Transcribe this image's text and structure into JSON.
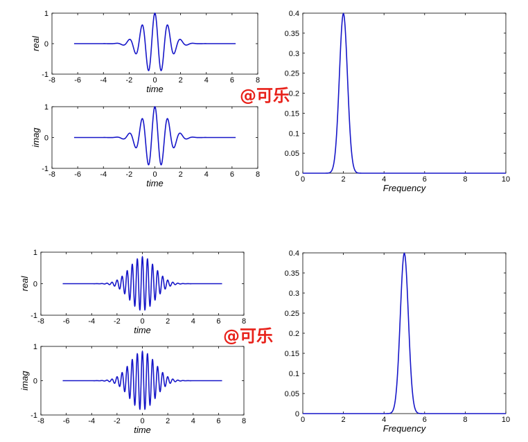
{
  "watermark": "@可乐",
  "colors": {
    "line": "#1515c8",
    "axis": "#000000",
    "background": "#ffffff"
  },
  "chart_data": [
    {
      "type": "line",
      "id": "wavelet-a-real",
      "title": "",
      "xlabel": "time",
      "ylabel": "real",
      "xlim": [
        -8,
        8
      ],
      "ylim": [
        -1,
        1
      ],
      "xticks": [
        -8,
        -6,
        -4,
        -2,
        0,
        2,
        4,
        6,
        8
      ],
      "yticks": [
        -1,
        0,
        1
      ],
      "grid": false,
      "signal": {
        "component": "real",
        "center_frequency": 2,
        "envelope_sigma": 1,
        "t_range": [
          -6.28,
          6.28
        ],
        "amplitude": 1
      },
      "series": [
        {
          "description_points": {
            "x": [
              -6.28,
              -3,
              -2,
              -1,
              0,
              1,
              2,
              3,
              6.28
            ],
            "y": [
              0,
              0,
              0.14,
              0.6,
              1.0,
              0.6,
              0.14,
              0,
              0
            ]
          }
        }
      ]
    },
    {
      "type": "line",
      "id": "wavelet-a-imag",
      "title": "",
      "xlabel": "time",
      "ylabel": "imag",
      "xlim": [
        -8,
        8
      ],
      "ylim": [
        -1,
        1
      ],
      "xticks": [
        -8,
        -6,
        -4,
        -2,
        0,
        2,
        4,
        6,
        8
      ],
      "yticks": [
        -1,
        0,
        1
      ],
      "grid": false,
      "signal": {
        "component": "imag",
        "center_frequency": 2,
        "envelope_sigma": 1,
        "t_range": [
          -6.28,
          6.28
        ],
        "amplitude": 1
      },
      "series": [
        {
          "description_points": {
            "x": [
              -6.28,
              -3,
              -2,
              -1,
              0,
              1,
              2,
              3,
              6.28
            ],
            "y": [
              0,
              0,
              0.14,
              0.6,
              1.0,
              0.6,
              0.14,
              0,
              0
            ]
          }
        }
      ]
    },
    {
      "type": "line",
      "id": "spectrum-a",
      "title": "",
      "xlabel": "Frequency",
      "ylabel": "",
      "xlim": [
        0,
        10
      ],
      "ylim": [
        0,
        0.4
      ],
      "xticks": [
        0,
        2,
        4,
        6,
        8,
        10
      ],
      "yticks": [
        0,
        0.05,
        0.1,
        0.15,
        0.2,
        0.25,
        0.3,
        0.35,
        0.4
      ],
      "ytick_labels": [
        "0",
        "0.05",
        "0.1",
        "0.15",
        "0.2",
        "0.25",
        "0.3",
        "0.35",
        "0.4"
      ],
      "grid": false,
      "peak": {
        "center": 2,
        "height": 0.399,
        "sigma": 0.2
      },
      "series": [
        {
          "x": [
            0,
            1.4,
            1.6,
            1.8,
            2.0,
            2.2,
            2.4,
            2.6,
            10
          ],
          "y": [
            0,
            0.004,
            0.054,
            0.242,
            0.399,
            0.242,
            0.054,
            0.004,
            0
          ]
        }
      ]
    },
    {
      "type": "line",
      "id": "wavelet-b-real",
      "title": "",
      "xlabel": "time",
      "ylabel": "real",
      "xlim": [
        -8,
        8
      ],
      "ylim": [
        -1,
        1
      ],
      "xticks": [
        -8,
        -6,
        -4,
        -2,
        0,
        2,
        4,
        6,
        8
      ],
      "yticks": [
        -1,
        0,
        1
      ],
      "grid": false,
      "signal": {
        "component": "real",
        "center_frequency": 5,
        "envelope_sigma": 1,
        "t_range": [
          -6.28,
          6.28
        ],
        "amplitude": 0.85
      },
      "series": [
        {
          "description_points": {
            "x": [
              -6.28,
              -3,
              -2,
              -1,
              0,
              1,
              2,
              3,
              6.28
            ],
            "y": [
              0,
              0,
              0.12,
              0.52,
              0.85,
              0.52,
              0.12,
              0,
              0
            ]
          }
        }
      ]
    },
    {
      "type": "line",
      "id": "wavelet-b-imag",
      "title": "",
      "xlabel": "time",
      "ylabel": "imag",
      "xlim": [
        -8,
        8
      ],
      "ylim": [
        -1,
        1
      ],
      "xticks": [
        -8,
        -6,
        -4,
        -2,
        0,
        2,
        4,
        6,
        8
      ],
      "yticks": [
        -1,
        0,
        1
      ],
      "grid": false,
      "signal": {
        "component": "imag",
        "center_frequency": 5,
        "envelope_sigma": 1,
        "t_range": [
          -6.28,
          6.28
        ],
        "amplitude": 0.85
      },
      "series": [
        {
          "description_points": {
            "x": [
              -6.28,
              -3,
              -2,
              -1,
              0,
              1,
              2,
              3,
              6.28
            ],
            "y": [
              0,
              0,
              0.12,
              0.52,
              0.85,
              0.52,
              0.12,
              0,
              0
            ]
          }
        }
      ]
    },
    {
      "type": "line",
      "id": "spectrum-b",
      "title": "",
      "xlabel": "Frequency",
      "ylabel": "",
      "xlim": [
        0,
        10
      ],
      "ylim": [
        0,
        0.4
      ],
      "xticks": [
        0,
        2,
        4,
        6,
        8,
        10
      ],
      "yticks": [
        0,
        0.05,
        0.1,
        0.15,
        0.2,
        0.25,
        0.3,
        0.35,
        0.4
      ],
      "ytick_labels": [
        "0",
        "0.05",
        "0.1",
        "0.15",
        "0.2",
        "0.25",
        "0.3",
        "0.35",
        "0.4"
      ],
      "grid": false,
      "peak": {
        "center": 5,
        "height": 0.399,
        "sigma": 0.2
      },
      "series": [
        {
          "x": [
            0,
            4.4,
            4.6,
            4.8,
            5.0,
            5.2,
            5.4,
            5.6,
            10
          ],
          "y": [
            0,
            0.004,
            0.054,
            0.242,
            0.399,
            0.242,
            0.054,
            0.004,
            0
          ]
        }
      ]
    }
  ]
}
